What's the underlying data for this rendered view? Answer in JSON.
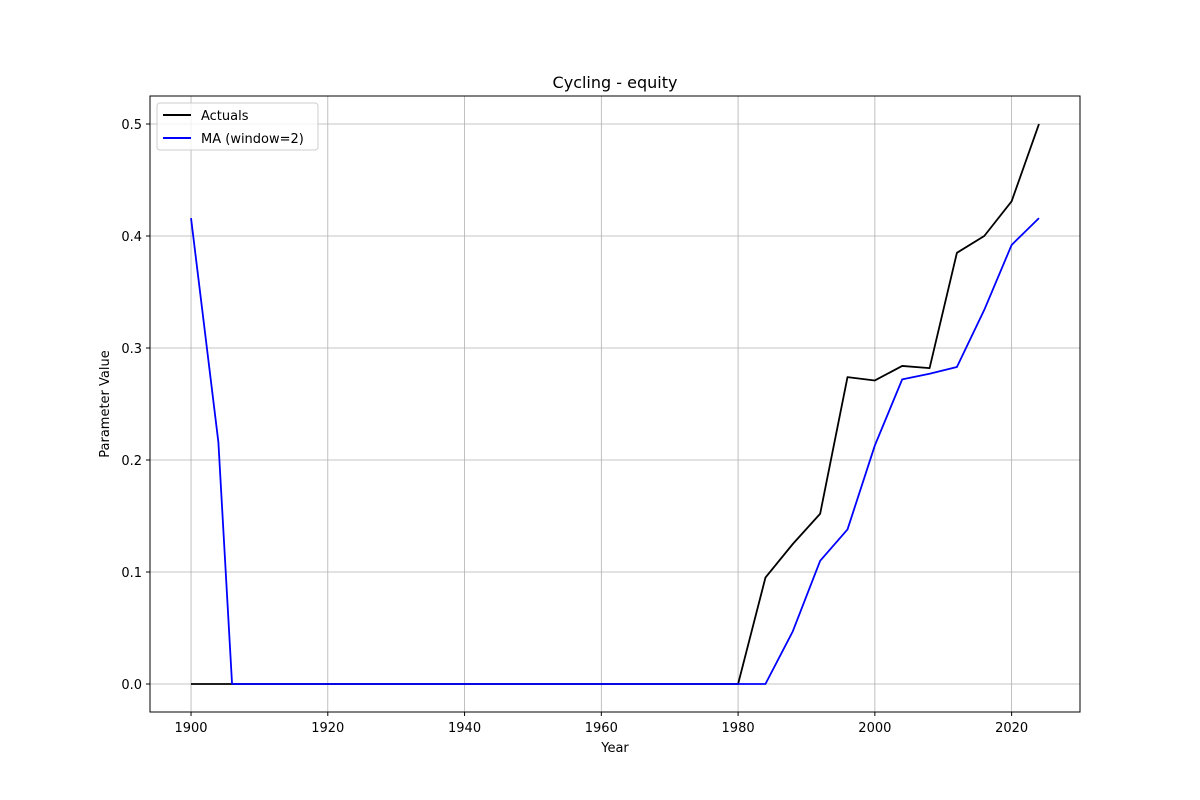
{
  "chart_data": {
    "type": "line",
    "title": "Cycling - equity",
    "xlabel": "Year",
    "ylabel": "Parameter Value",
    "xlim": [
      1894,
      2030
    ],
    "ylim": [
      -0.025,
      0.525
    ],
    "xticks": [
      1900,
      1920,
      1940,
      1960,
      1980,
      2000,
      2020
    ],
    "yticks": [
      0.0,
      0.1,
      0.2,
      0.3,
      0.4,
      0.5
    ],
    "ytick_labels": [
      "0.0",
      "0.1",
      "0.2",
      "0.3",
      "0.4",
      "0.5"
    ],
    "grid": true,
    "legend_position": "upper-left",
    "series": [
      {
        "name": "Actuals",
        "color": "#000000",
        "x": [
          1900,
          1904,
          1906,
          1980,
          1984,
          1988,
          1992,
          1996,
          2000,
          2004,
          2008,
          2012,
          2016,
          2020,
          2024
        ],
        "y": [
          0.0,
          0.0,
          0.0,
          0.0,
          0.095,
          0.125,
          0.152,
          0.274,
          0.271,
          0.284,
          0.282,
          0.385,
          0.4,
          0.431,
          0.5
        ]
      },
      {
        "name": "MA (window=2)",
        "color": "#0000ff",
        "x": [
          1900,
          1904,
          1906,
          1980,
          1984,
          1988,
          1992,
          1996,
          2000,
          2004,
          2008,
          2012,
          2016,
          2020,
          2024
        ],
        "y": [
          0.416,
          0.216,
          0.0,
          0.0,
          0.0,
          0.047,
          0.11,
          0.138,
          0.213,
          0.272,
          0.277,
          0.283,
          0.334,
          0.392,
          0.416
        ]
      }
    ]
  }
}
